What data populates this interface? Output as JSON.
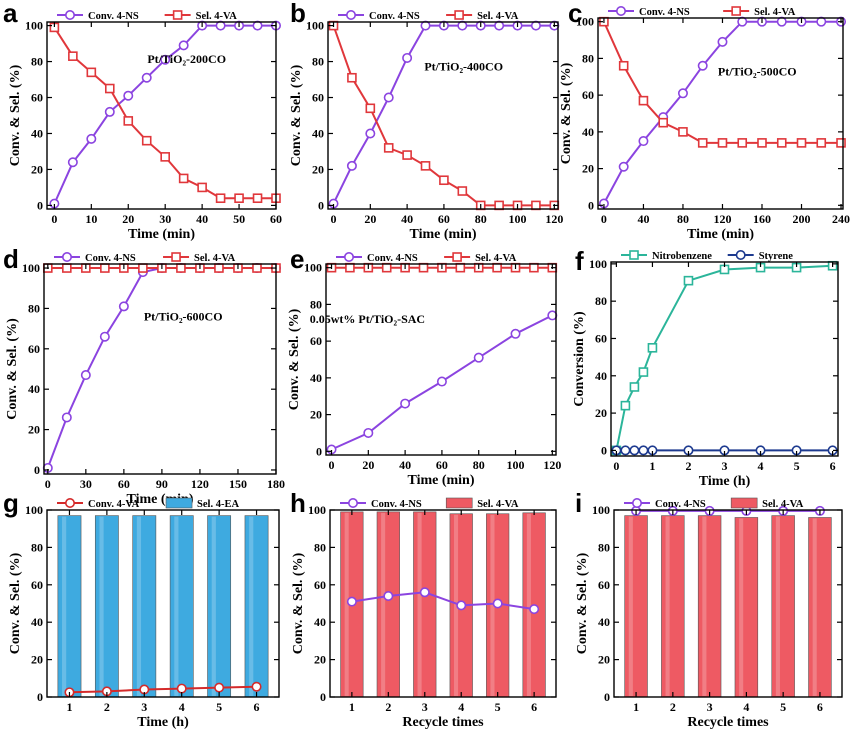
{
  "colors": {
    "conv": "#8b44e0",
    "sel": "#e0373b",
    "nitro": "#2bb59a",
    "styrene": "#1d3a8f",
    "bar_blue": "#3eaae0",
    "bar_red": "#ee5a63",
    "conv_red": "#d42a2a"
  },
  "chart_data": [
    {
      "letter": "a",
      "type": "line",
      "xlabel": "Time (min)",
      "ylabel": "Conv. & Sel. (%)",
      "xlim": [
        -2,
        60
      ],
      "ylim": [
        -2,
        102
      ],
      "xticks": [
        0,
        10,
        20,
        30,
        40,
        50,
        60
      ],
      "yticks": [
        0,
        20,
        40,
        60,
        80,
        100
      ],
      "annotation": "Pt/TiO₂-200CO",
      "legend": [
        {
          "name": "Conv. 4-NS",
          "marker": "circle",
          "color": "#8b44e0"
        },
        {
          "name": "Sel. 4-VA",
          "marker": "square",
          "color": "#e0373b"
        }
      ],
      "series": [
        {
          "name": "Conv. 4-NS",
          "marker": "circle",
          "color": "#8b44e0",
          "x": [
            0,
            5,
            10,
            15,
            20,
            25,
            30,
            35,
            40,
            45,
            50,
            55,
            60
          ],
          "y": [
            1,
            24,
            37,
            52,
            61,
            71,
            81,
            89,
            100,
            100,
            100,
            100,
            100
          ]
        },
        {
          "name": "Sel. 4-VA",
          "marker": "square",
          "color": "#e0373b",
          "x": [
            0,
            5,
            10,
            15,
            20,
            25,
            30,
            35,
            40,
            45,
            50,
            55,
            60
          ],
          "y": [
            99,
            83,
            74,
            65,
            47,
            36,
            27,
            15,
            10,
            4,
            4,
            4,
            4
          ]
        }
      ]
    },
    {
      "letter": "b",
      "type": "line",
      "xlabel": "Time (min)",
      "ylabel": "Conv. & Sel. (%)",
      "xlim": [
        -3,
        122
      ],
      "ylim": [
        -2,
        102
      ],
      "xticks": [
        0,
        20,
        40,
        60,
        80,
        100,
        120
      ],
      "yticks": [
        0,
        20,
        40,
        60,
        80,
        100
      ],
      "annotation": "Pt/TiO₂-400CO",
      "legend": [
        {
          "name": "Conv. 4-NS",
          "marker": "circle",
          "color": "#8b44e0"
        },
        {
          "name": "Sel. 4-VA",
          "marker": "square",
          "color": "#e0373b"
        }
      ],
      "series": [
        {
          "name": "Conv. 4-NS",
          "marker": "circle",
          "color": "#8b44e0",
          "x": [
            0,
            10,
            20,
            30,
            40,
            50,
            60,
            70,
            80,
            90,
            100,
            110,
            120
          ],
          "y": [
            1,
            22,
            40,
            60,
            82,
            100,
            100,
            100,
            100,
            100,
            100,
            100,
            100
          ]
        },
        {
          "name": "Sel. 4-VA",
          "marker": "square",
          "color": "#e0373b",
          "x": [
            0,
            10,
            20,
            30,
            40,
            50,
            60,
            70,
            80,
            90,
            100,
            110,
            120
          ],
          "y": [
            100,
            71,
            54,
            32,
            28,
            22,
            14,
            8,
            0,
            0,
            0,
            0,
            0
          ]
        }
      ]
    },
    {
      "letter": "c",
      "type": "line",
      "xlabel": "Time (min)",
      "ylabel": "Conv. & Sel. (%)",
      "xlim": [
        -6,
        242
      ],
      "ylim": [
        -2,
        102
      ],
      "xticks": [
        0,
        40,
        80,
        120,
        160,
        200,
        240
      ],
      "yticks": [
        0,
        20,
        40,
        60,
        80,
        100
      ],
      "annotation": "Pt/TiO₂-500CO",
      "legend": [
        {
          "name": "Conv. 4-NS",
          "marker": "circle",
          "color": "#8b44e0"
        },
        {
          "name": "Sel. 4-VA",
          "marker": "square",
          "color": "#e0373b"
        }
      ],
      "series": [
        {
          "name": "Conv. 4-NS",
          "marker": "circle",
          "color": "#8b44e0",
          "x": [
            0,
            20,
            40,
            60,
            80,
            100,
            120,
            140,
            160,
            180,
            200,
            220,
            240
          ],
          "y": [
            1,
            21,
            35,
            48,
            61,
            76,
            89,
            100,
            100,
            100,
            100,
            100,
            100
          ]
        },
        {
          "name": "Sel. 4-VA",
          "marker": "square",
          "color": "#e0373b",
          "x": [
            0,
            20,
            40,
            60,
            80,
            100,
            120,
            140,
            160,
            180,
            200,
            220,
            240
          ],
          "y": [
            100,
            76,
            57,
            45,
            40,
            34,
            34,
            34,
            34,
            34,
            34,
            34,
            34
          ]
        }
      ]
    },
    {
      "letter": "d",
      "type": "line",
      "xlabel": "Time (min)",
      "ylabel": "Conv. & Sel. (%)",
      "xlim": [
        -3,
        180
      ],
      "ylim": [
        -2,
        102
      ],
      "xticks": [
        0,
        30,
        60,
        90,
        120,
        150,
        180
      ],
      "yticks": [
        0,
        20,
        40,
        60,
        80,
        100
      ],
      "annotation": "Pt/TiO₂-600CO",
      "legend": [
        {
          "name": "Conv. 4-NS",
          "marker": "circle",
          "color": "#8b44e0"
        },
        {
          "name": "Sel. 4-VA",
          "marker": "square",
          "color": "#e0373b"
        }
      ],
      "series": [
        {
          "name": "Conv. 4-NS",
          "marker": "circle",
          "color": "#8b44e0",
          "x": [
            0,
            15,
            30,
            45,
            60,
            75,
            90,
            105,
            120,
            135,
            150,
            165,
            180
          ],
          "y": [
            1,
            26,
            47,
            66,
            81,
            98,
            100,
            100,
            100,
            100,
            100,
            100,
            100
          ]
        },
        {
          "name": "Sel. 4-VA",
          "marker": "square",
          "color": "#e0373b",
          "x": [
            0,
            15,
            30,
            45,
            60,
            75,
            90,
            105,
            120,
            135,
            150,
            165,
            180
          ],
          "y": [
            100,
            100,
            100,
            100,
            100,
            100,
            100,
            100,
            100,
            100,
            100,
            100,
            100
          ]
        }
      ]
    },
    {
      "letter": "e",
      "type": "line",
      "xlabel": "Time (min)",
      "ylabel": "Conv. & Sel. (%)",
      "xlim": [
        -3,
        122
      ],
      "ylim": [
        -2,
        102
      ],
      "xticks": [
        0,
        20,
        40,
        60,
        80,
        100,
        120
      ],
      "yticks": [
        0,
        20,
        40,
        60,
        80,
        100
      ],
      "annotation": "0.05wt% Pt/TiO₂-SAC",
      "legend": [
        {
          "name": "Conv. 4-NS",
          "marker": "circle",
          "color": "#8b44e0"
        },
        {
          "name": "Sel. 4-VA",
          "marker": "square",
          "color": "#e0373b"
        }
      ],
      "series": [
        {
          "name": "Conv. 4-NS",
          "marker": "circle",
          "color": "#8b44e0",
          "x": [
            0,
            20,
            40,
            60,
            80,
            100,
            120
          ],
          "y": [
            1,
            10,
            26,
            38,
            51,
            64,
            74
          ]
        },
        {
          "name": "Sel. 4-VA",
          "marker": "square",
          "color": "#e0373b",
          "x": [
            0,
            10,
            20,
            30,
            40,
            50,
            60,
            70,
            80,
            90,
            100,
            110,
            120
          ],
          "y": [
            100,
            100,
            100,
            100,
            100,
            100,
            100,
            100,
            100,
            100,
            100,
            100,
            100
          ]
        }
      ]
    },
    {
      "letter": "f",
      "type": "line",
      "xlabel": "Time (h)",
      "ylabel": "Conversion (%)",
      "xlim": [
        -0.15,
        6.15
      ],
      "ylim": [
        -3,
        101
      ],
      "xticks": [
        0,
        1,
        2,
        3,
        4,
        5,
        6
      ],
      "yticks": [
        0,
        20,
        40,
        60,
        80,
        100
      ],
      "annotation": "",
      "legend": [
        {
          "name": "Nitrobenzene",
          "marker": "square",
          "color": "#2bb59a"
        },
        {
          "name": "Styrene",
          "marker": "circle",
          "color": "#1d3a8f"
        }
      ],
      "series": [
        {
          "name": "Nitrobenzene",
          "marker": "square",
          "color": "#2bb59a",
          "x": [
            0,
            0.25,
            0.5,
            0.75,
            1,
            2,
            3,
            4,
            5,
            6
          ],
          "y": [
            0,
            24,
            34,
            42,
            55,
            91,
            97,
            98,
            98,
            99
          ]
        },
        {
          "name": "Styrene",
          "marker": "circle",
          "color": "#1d3a8f",
          "x": [
            0,
            0.25,
            0.5,
            0.75,
            1,
            2,
            3,
            4,
            5,
            6
          ],
          "y": [
            0,
            0,
            0,
            0,
            0,
            0,
            0,
            0,
            0,
            0
          ]
        }
      ]
    },
    {
      "letter": "g",
      "type": "bar",
      "xlabel": "Time (h)",
      "ylabel": "Conv. & Sel. (%)",
      "xlim": [
        0.4,
        6.6
      ],
      "ylim": [
        0,
        100
      ],
      "xticks": [
        1,
        2,
        3,
        4,
        5,
        6
      ],
      "yticks": [
        0,
        20,
        40,
        60,
        80,
        100
      ],
      "annotation": "",
      "legend": [
        {
          "name": "Conv. 4-VA",
          "marker": "circle",
          "color": "#d42a2a"
        },
        {
          "name": "Sel. 4-EA",
          "marker": "bar",
          "color": "#3eaae0"
        }
      ],
      "bars": {
        "name": "Sel. 4-EA",
        "color": "#3eaae0",
        "x": [
          1,
          2,
          3,
          4,
          5,
          6
        ],
        "values": [
          97,
          97,
          97,
          97,
          97,
          97
        ]
      },
      "series": [
        {
          "name": "Conv. 4-VA",
          "marker": "circle",
          "color": "#d42a2a",
          "x": [
            1,
            2,
            3,
            4,
            5,
            6
          ],
          "y": [
            2.5,
            3,
            4,
            4.5,
            5,
            5.5
          ]
        }
      ]
    },
    {
      "letter": "h",
      "type": "bar",
      "xlabel": "Recycle times",
      "ylabel": "Conv. & Sel. (%)",
      "xlim": [
        0.4,
        6.6
      ],
      "ylim": [
        0,
        100
      ],
      "xticks": [
        1,
        2,
        3,
        4,
        5,
        6
      ],
      "yticks": [
        0,
        20,
        40,
        60,
        80,
        100
      ],
      "annotation": "",
      "legend": [
        {
          "name": "Conv. 4-NS",
          "marker": "circle",
          "color": "#8b44e0"
        },
        {
          "name": "Sel. 4-VA",
          "marker": "bar",
          "color": "#ee5a63"
        }
      ],
      "bars": {
        "name": "Sel. 4-VA",
        "color": "#ee5a63",
        "x": [
          1,
          2,
          3,
          4,
          5,
          6
        ],
        "values": [
          99,
          99,
          99,
          98,
          98,
          98.5
        ]
      },
      "series": [
        {
          "name": "Conv. 4-NS",
          "marker": "circle",
          "color": "#8b44e0",
          "x": [
            1,
            2,
            3,
            4,
            5,
            6
          ],
          "y": [
            51,
            54,
            56,
            49,
            50,
            47
          ]
        }
      ]
    },
    {
      "letter": "i",
      "type": "bar",
      "xlabel": "Recycle times",
      "ylabel": "Conv. & Sel. (%)",
      "xlim": [
        0.4,
        6.6
      ],
      "ylim": [
        0,
        100
      ],
      "xticks": [
        1,
        2,
        3,
        4,
        5,
        6
      ],
      "yticks": [
        0,
        20,
        40,
        60,
        80,
        100
      ],
      "annotation": "",
      "legend": [
        {
          "name": "Conv. 4-NS",
          "marker": "circle",
          "color": "#8b44e0"
        },
        {
          "name": "Sel. 4-VA",
          "marker": "bar",
          "color": "#ee5a63"
        }
      ],
      "bars": {
        "name": "Sel. 4-VA",
        "color": "#ee5a63",
        "x": [
          1,
          2,
          3,
          4,
          5,
          6
        ],
        "values": [
          97,
          97,
          97,
          96,
          97,
          96
        ]
      },
      "series": [
        {
          "name": "Conv. 4-NS",
          "marker": "circle",
          "color": "#8b44e0",
          "x": [
            1,
            2,
            3,
            4,
            5,
            6
          ],
          "y": [
            99.5,
            99.5,
            99.5,
            99.5,
            99.5,
            99.5
          ]
        }
      ]
    }
  ]
}
